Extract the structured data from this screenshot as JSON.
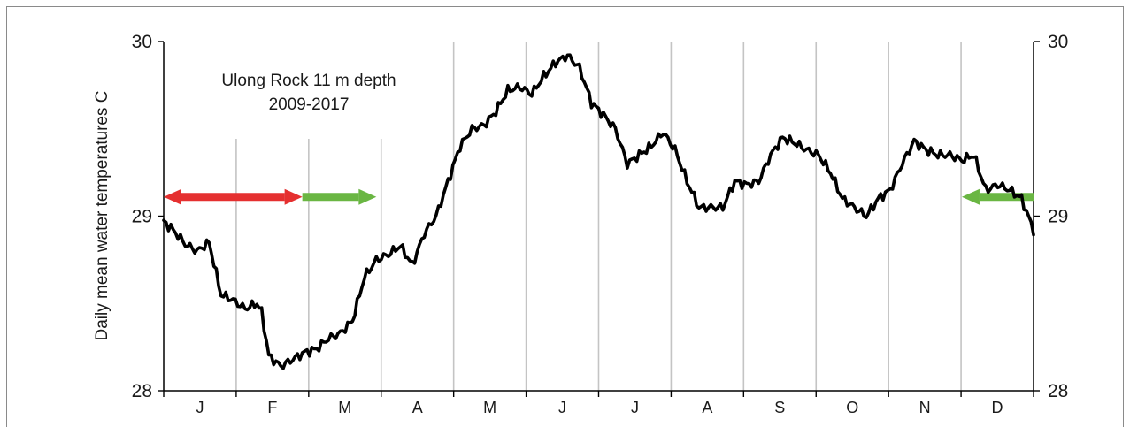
{
  "chart_data": {
    "type": "line",
    "title": "Ulong Rock 11 m depth",
    "subtitle": "2009-2017",
    "ylabel": "Daily mean water temperatures C",
    "xlabel": "",
    "ylim": [
      28,
      30
    ],
    "yticks": [
      "28",
      "29",
      "30"
    ],
    "right_yticks": [
      "28",
      "29",
      "30"
    ],
    "categories": [
      "J",
      "F",
      "M",
      "A",
      "M",
      "J",
      "J",
      "A",
      "S",
      "O",
      "N",
      "D"
    ],
    "grid": "vertical month separators",
    "series": [
      {
        "color": "#000000",
        "x": [
          1,
          5,
          10,
          15,
          20,
          25,
          30,
          35,
          40,
          42,
          45,
          50,
          55,
          60,
          65,
          70,
          75,
          80,
          85,
          90,
          95,
          100,
          105,
          110,
          115,
          120,
          125,
          130,
          135,
          140,
          145,
          150,
          155,
          160,
          165,
          170,
          175,
          180,
          185,
          190,
          195,
          200,
          205,
          210,
          215,
          220,
          225,
          230,
          235,
          240,
          245,
          250,
          255,
          260,
          265,
          270,
          275,
          280,
          285,
          290,
          295,
          300,
          305,
          310,
          315,
          320,
          325,
          330,
          335,
          340,
          345,
          350,
          355,
          360,
          365
        ],
        "y": [
          28.97,
          28.92,
          28.84,
          28.8,
          28.85,
          28.55,
          28.52,
          28.47,
          28.5,
          28.45,
          28.2,
          28.14,
          28.18,
          28.22,
          28.24,
          28.3,
          28.33,
          28.4,
          28.65,
          28.75,
          28.78,
          28.83,
          28.72,
          28.9,
          29.0,
          29.2,
          29.4,
          29.5,
          29.52,
          29.6,
          29.72,
          29.74,
          29.7,
          29.8,
          29.88,
          29.92,
          29.85,
          29.65,
          29.58,
          29.5,
          29.3,
          29.35,
          29.4,
          29.48,
          29.38,
          29.2,
          29.05,
          29.05,
          29.05,
          29.2,
          29.18,
          29.2,
          29.35,
          29.45,
          29.42,
          29.38,
          29.35,
          29.25,
          29.1,
          29.05,
          29.0,
          29.1,
          29.15,
          29.3,
          29.43,
          29.38,
          29.35,
          29.35,
          29.32,
          29.35,
          29.15,
          29.18,
          29.15,
          29.1,
          28.92
        ]
      }
    ],
    "annotations": [
      {
        "type": "double-arrow",
        "color": "#e53030",
        "x_from": 1,
        "x_to": 59,
        "y": 29.11
      },
      {
        "type": "arrow-right",
        "color": "#6ab643",
        "x_from": 59,
        "x_to": 90,
        "y": 29.11
      },
      {
        "type": "arrow-left",
        "color": "#6ab643",
        "x_from": 365,
        "x_to": 335,
        "y": 29.11
      }
    ]
  }
}
